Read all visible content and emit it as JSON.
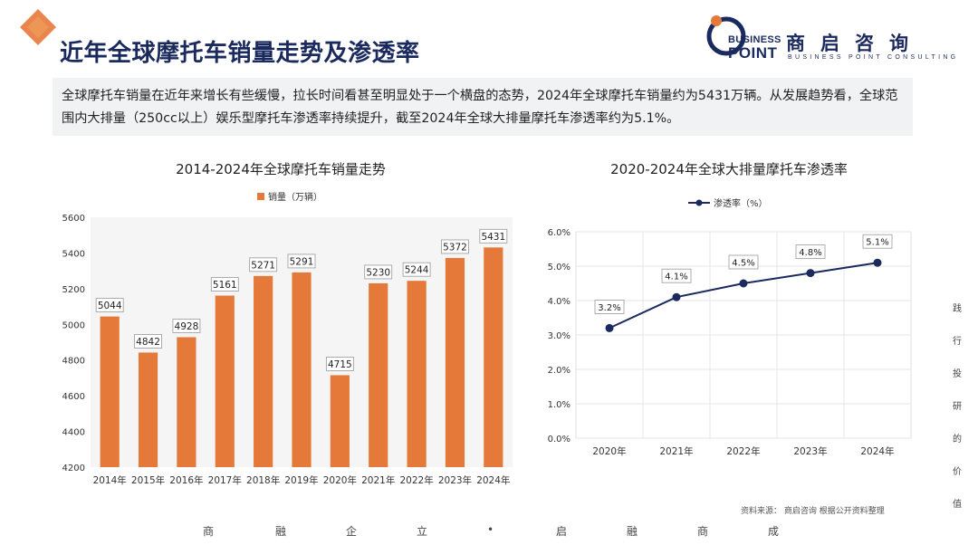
{
  "header": {
    "title": "近年全球摩托车销量走势及渗透率"
  },
  "logo": {
    "en_line1": "BUSINESS",
    "en_line2": "POINT",
    "cn": "商启咨询",
    "sub": "BUSINESS POINT CONSULTING"
  },
  "summary": "全球摩托车销量在近年来增长有些缓慢，拉长时间看甚至明显处于一个横盘的态势，2024年全球摩托车销量约为5431万辆。从发展趋势看，全球范围内大排量（250cc以上）娱乐型摩托车渗透率持续提升，截至2024年全球大排量摩托车渗透率约为5.1%。",
  "colors": {
    "bar": "#e5793a",
    "line": "#1b2a5e",
    "title": "#1b2a5e"
  },
  "chart_data": [
    {
      "type": "bar",
      "title": "2014-2024年全球摩托车销量走势",
      "legend": "销量（万辆）",
      "categories": [
        "2014年",
        "2015年",
        "2016年",
        "2017年",
        "2018年",
        "2019年",
        "2020年",
        "2021年",
        "2022年",
        "2023年",
        "2024年"
      ],
      "values": [
        5044,
        4842,
        4928,
        5161,
        5271,
        5291,
        4715,
        5230,
        5244,
        5372,
        5431
      ],
      "value_labels": [
        "5044",
        "4842",
        "4928",
        "5161",
        "5271",
        "5291",
        "4715",
        "5230",
        "5244",
        "5372",
        "5431"
      ],
      "ylim": [
        4200,
        5600
      ],
      "yticks": [
        "4200",
        "4400",
        "4600",
        "4800",
        "5000",
        "5200",
        "5400",
        "5600"
      ],
      "xlabel": "",
      "ylabel": ""
    },
    {
      "type": "line",
      "title": "2020-2024年全球大排量摩托车渗透率",
      "legend": "渗透率（%）",
      "categories": [
        "2020年",
        "2021年",
        "2022年",
        "2023年",
        "2024年"
      ],
      "values": [
        3.2,
        4.1,
        4.5,
        4.8,
        5.1
      ],
      "value_labels": [
        "3.2%",
        "4.1%",
        "4.5%",
        "4.8%",
        "5.1%"
      ],
      "ylim": [
        0,
        6
      ],
      "yticks": [
        "0.0%",
        "1.0%",
        "2.0%",
        "3.0%",
        "4.0%",
        "5.0%",
        "6.0%"
      ],
      "xlabel": "",
      "ylabel": ""
    }
  ],
  "source": "资料来源：  商启咨询 根据公开资料整理",
  "footer": [
    "商",
    "融",
    "企",
    "立",
    "•",
    "启",
    "融",
    "商",
    "成"
  ],
  "side_text": [
    "践",
    "行",
    "投",
    "研",
    "的",
    "价",
    "值"
  ]
}
